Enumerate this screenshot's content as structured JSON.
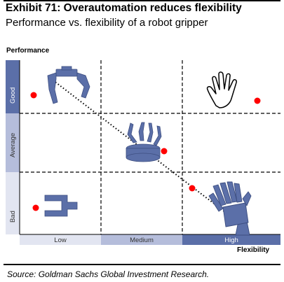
{
  "header": {
    "title": "Exhibit 71: Overautomation reduces flexibility",
    "subtitle": "Performance vs. flexibility of a robot gripper"
  },
  "axes": {
    "y_label": "Performance",
    "x_label": "Flexibility",
    "y_levels": [
      "Good",
      "Average",
      "Bad"
    ],
    "x_levels": [
      "Low",
      "Medium",
      "High"
    ]
  },
  "footer": {
    "source": "Source: Goldman Sachs Global Investment Research."
  },
  "colors": {
    "band_dark": "#5b6fa8",
    "band_mid": "#b5bddb",
    "band_light": "#e2e5f1",
    "marker": "#ff0000",
    "gripper": "#5b6fa8"
  },
  "icons": [
    "claw-gripper-icon",
    "open-hand-icon",
    "multi-finger-gripper-icon",
    "parallel-jaw-gripper-icon",
    "robotic-hand-icon"
  ]
}
